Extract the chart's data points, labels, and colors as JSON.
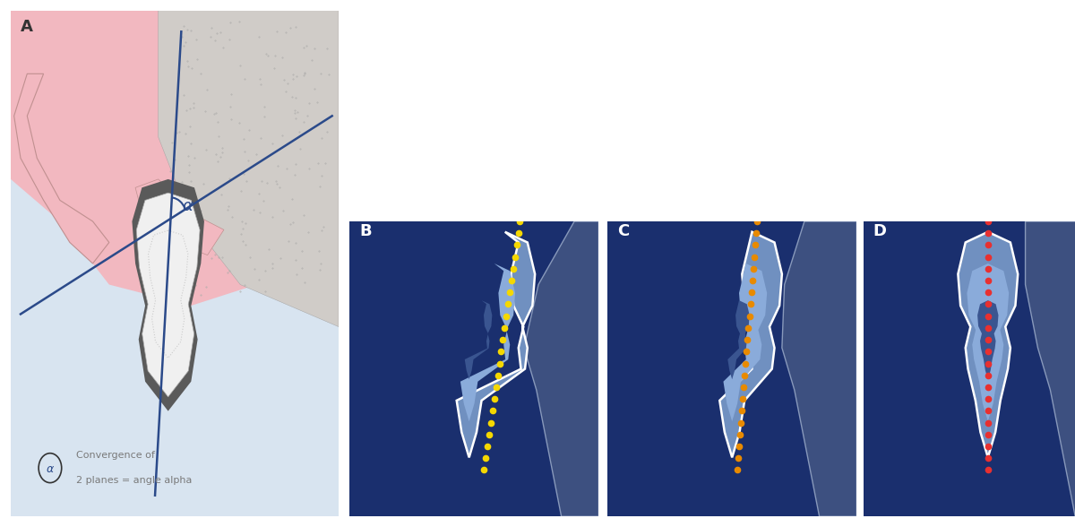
{
  "fig_width": 12.0,
  "fig_height": 5.88,
  "panel_A_bg_top": "#f2b8c0",
  "panel_A_bg_bottom": "#d8e4f0",
  "panel_A_bone_color": "#d0ccc8",
  "panel_A_tooth_outer": "#b0aeac",
  "panel_A_tooth_inner": "#f0f0f0",
  "panel_A_line_color": "#2b4a8a",
  "panel_A_label": "A",
  "panel_BCD_bg": "#1a2f6e",
  "panel_B_label": "B",
  "panel_C_label": "C",
  "panel_D_label": "D",
  "dot_color_B": "#f5d800",
  "dot_color_C": "#e88a00",
  "dot_color_D": "#e83030",
  "label_color": "#ffffff",
  "legend_text": "Convergence of\n2 planes = angle alpha",
  "legend_alpha_color": "#2b4a8a",
  "legend_text_color": "#7a7a7a",
  "outer_bg": "#ffffff"
}
